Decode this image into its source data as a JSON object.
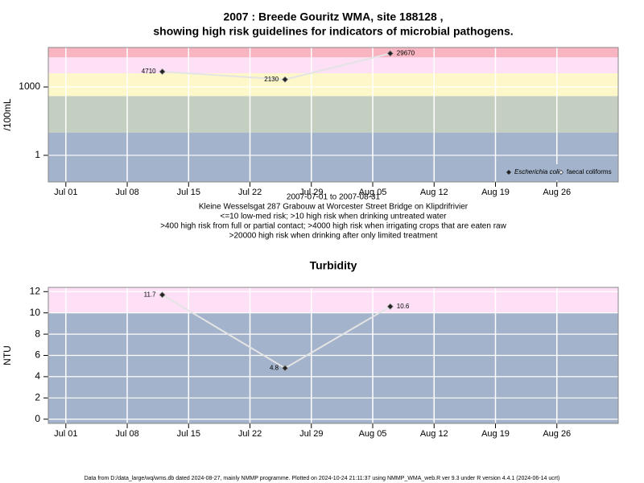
{
  "chart_data": [
    {
      "type": "line",
      "title": "2007 : Breede Gouritz WMA, site 188128 ,",
      "subtitle": "showing high risk guidelines for indicators of microbial pathogens.",
      "notes": [
        "2007-07-01 to 2007-08-31",
        "Kleine Wesselsgat 287 Grabouw at Worcester Street Bridge on Klipdrifrivier",
        "<=10 low-med risk; >10 high risk when drinking untreated water",
        ">400 high risk from full or partial contact; >4000 high risk when irrigating crops that are eaten raw",
        ">20000 high risk when drinking after only limited treatment"
      ],
      "y_label": "/100mL",
      "x": [
        "2007-07-12",
        "2007-07-26",
        "2007-08-07"
      ],
      "series": [
        {
          "name": "Escherichia coli",
          "color": "#222222",
          "values": [
            4710,
            2130,
            29670
          ]
        },
        {
          "name": "faecal coliforms",
          "color": "#ffffff",
          "values": [
            null,
            null,
            null
          ]
        }
      ],
      "log_y": true,
      "ylim": [
        0.068,
        54000
      ],
      "yticks": [
        1,
        1000
      ],
      "xlim": [
        "2007-06-29",
        "2007-09-02"
      ],
      "xticks": [
        {
          "value": "2007-07-01",
          "label": "Jul 01"
        },
        {
          "value": "2007-07-08",
          "label": "Jul 08"
        },
        {
          "value": "2007-07-15",
          "label": "Jul 15"
        },
        {
          "value": "2007-07-22",
          "label": "Jul 22"
        },
        {
          "value": "2007-07-29",
          "label": "Jul 29"
        },
        {
          "value": "2007-08-05",
          "label": "Aug 05"
        },
        {
          "value": "2007-08-12",
          "label": "Aug 12"
        },
        {
          "value": "2007-08-19",
          "label": "Aug 19"
        },
        {
          "value": "2007-08-26",
          "label": "Aug 26"
        }
      ],
      "thresholds": [
        10,
        400,
        4000,
        20000
      ],
      "band_colors": [
        "#a3b3cb",
        "#c4cec1",
        "#fdf7c9",
        "#fde0f6",
        "#f8b4c1"
      ],
      "grid": true,
      "legend": "bottom-right"
    },
    {
      "type": "line",
      "title": "Turbidity",
      "y_label": "NTU",
      "x": [
        "2007-07-12",
        "2007-07-26",
        "2007-08-07"
      ],
      "values": [
        11.7,
        4.8,
        10.6
      ],
      "color": "#222222",
      "log_y": false,
      "ylim": [
        -0.4,
        12.4
      ],
      "yticks": [
        0,
        2,
        4,
        6,
        8,
        10,
        12
      ],
      "xlim": [
        "2007-06-29",
        "2007-09-02"
      ],
      "xticks": [
        {
          "value": "2007-07-01",
          "label": "Jul 01"
        },
        {
          "value": "2007-07-08",
          "label": "Jul 08"
        },
        {
          "value": "2007-07-15",
          "label": "Jul 15"
        },
        {
          "value": "2007-07-22",
          "label": "Jul 22"
        },
        {
          "value": "2007-07-29",
          "label": "Jul 29"
        },
        {
          "value": "2007-08-05",
          "label": "Aug 05"
        },
        {
          "value": "2007-08-12",
          "label": "Aug 12"
        },
        {
          "value": "2007-08-19",
          "label": "Aug 19"
        },
        {
          "value": "2007-08-26",
          "label": "Aug 26"
        }
      ],
      "thresholds": [
        10
      ],
      "band_colors": [
        "#a3b3cb",
        "#fde0f6"
      ],
      "grid": true
    }
  ],
  "footer": "Data from D:/data_large/wq/wms.db dated 2024-08-27, mainly NMMP programme. Plotted on 2024-10-24 21:11:37 using NMMP_WMA_web.R ver 9.3 under R version 4.4.1 (2024-06-14 ucrt)"
}
